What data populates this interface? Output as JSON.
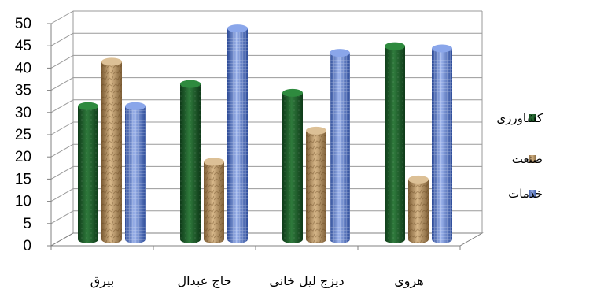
{
  "chart_data": {
    "type": "bar",
    "title": "",
    "xlabel": "",
    "ylabel": "",
    "ylim": [
      0,
      50
    ],
    "yticks": [
      0,
      5,
      10,
      15,
      20,
      25,
      30,
      35,
      40,
      45,
      50
    ],
    "grid": true,
    "legend_position": "right",
    "categories": [
      "بیرق",
      "حاج عبدال",
      "دیزج لیل خانی",
      "هروی"
    ],
    "series": [
      {
        "name": "کشاورزی",
        "values": [
          30,
          35,
          33,
          43.5
        ],
        "color": "#1f5a2a"
      },
      {
        "name": "صنعت",
        "values": [
          40,
          17.5,
          24.5,
          13.5
        ],
        "color": "#b08a5a"
      },
      {
        "name": "خدمات",
        "values": [
          30,
          47.5,
          42,
          43
        ],
        "color": "#4a6fc4"
      }
    ]
  }
}
